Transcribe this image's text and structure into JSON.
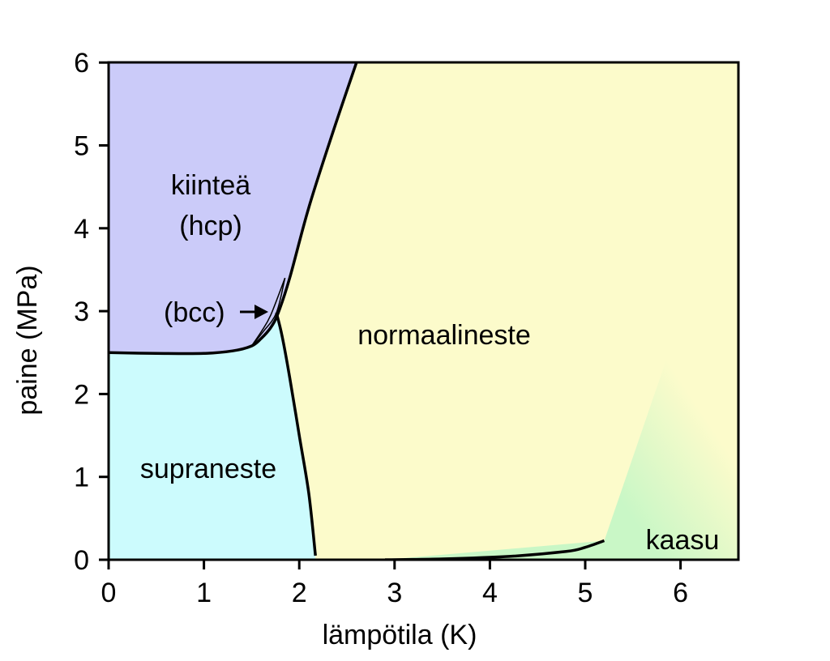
{
  "colors": {
    "solid_hcp": "#CBCBF9",
    "solid_bcc": "#C9C9F5",
    "superfluid": "#CCFBFD",
    "normal_liquid": "#FCFBCB",
    "gas": "#C9F7C6",
    "line": "#000000",
    "background": "#FFFFFF"
  },
  "chart_data": {
    "type": "phase-diagram",
    "xlabel": "lämpötila (K)",
    "ylabel": "paine (MPa)",
    "xlim": [
      0,
      6.65
    ],
    "ylim": [
      0,
      6
    ],
    "x_ticks": [
      "0",
      "1",
      "2",
      "3",
      "4",
      "5",
      "6"
    ],
    "y_ticks": [
      "0",
      "1",
      "2",
      "3",
      "4",
      "5",
      "6"
    ],
    "grid": false,
    "regions": [
      {
        "name": "solid_hcp",
        "label_lines": [
          "kiinteä",
          "(hcp)"
        ]
      },
      {
        "name": "solid_bcc",
        "label_lines": [
          "(bcc)"
        ]
      },
      {
        "name": "superfluid",
        "label_lines": [
          "supraneste"
        ]
      },
      {
        "name": "normal_liquid",
        "label_lines": [
          "normaalineste"
        ]
      },
      {
        "name": "gas",
        "label_lines": [
          "kaasu"
        ]
      }
    ],
    "boundaries": {
      "melting_curve": [
        [
          0,
          2.5
        ],
        [
          0.5,
          2.49
        ],
        [
          1.0,
          2.49
        ],
        [
          1.3,
          2.52
        ],
        [
          1.5,
          2.58
        ],
        [
          1.6,
          2.67
        ],
        [
          1.7,
          2.8
        ],
        [
          1.78,
          2.98
        ],
        [
          1.9,
          3.4
        ],
        [
          2.1,
          4.25
        ],
        [
          2.35,
          5.15
        ],
        [
          2.6,
          6.0
        ]
      ],
      "lambda_line": [
        [
          1.76,
          2.98
        ],
        [
          1.82,
          2.7
        ],
        [
          1.9,
          2.2
        ],
        [
          2.0,
          1.5
        ],
        [
          2.1,
          0.8
        ],
        [
          2.17,
          0.05
        ]
      ],
      "vaporization_curve": [
        [
          2.9,
          0.0
        ],
        [
          3.5,
          0.01
        ],
        [
          4.2,
          0.04
        ],
        [
          4.8,
          0.1
        ],
        [
          5.0,
          0.15
        ],
        [
          5.2,
          0.23
        ]
      ],
      "bcc_upper": [
        [
          1.5,
          2.58
        ],
        [
          1.6,
          2.75
        ],
        [
          1.7,
          2.95
        ],
        [
          1.85,
          3.4
        ]
      ],
      "bcc_lower": [
        [
          1.5,
          2.58
        ],
        [
          1.62,
          2.75
        ],
        [
          1.76,
          2.98
        ],
        [
          1.85,
          3.4
        ]
      ]
    },
    "critical_point": {
      "T": 5.2,
      "P": 0.23
    },
    "annotations": [
      {
        "text": "(bcc)",
        "arrow_to": [
          1.7,
          2.97
        ]
      }
    ]
  }
}
